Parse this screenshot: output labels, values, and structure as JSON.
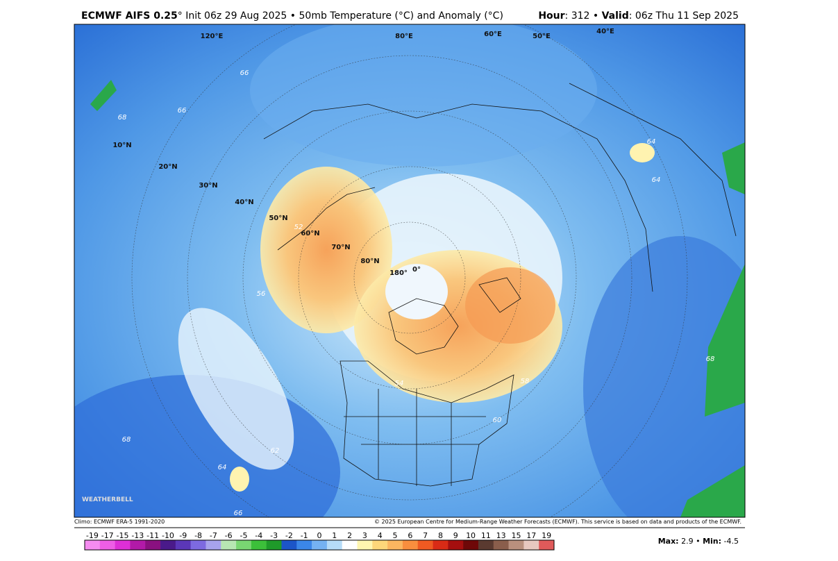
{
  "header": {
    "model": "ECMWF AIFS 0.25",
    "init": "° Init 06z 29 Aug 2025 • 50mb Temperature (°C) and Anomaly (°C)",
    "hour_label": "Hour",
    "hour_value": ": 312 • ",
    "valid_label": "Valid",
    "valid_value": ": 06z Thu 11 Sep 2025"
  },
  "map": {
    "lat_labels": [
      "10°N",
      "20°N",
      "30°N",
      "40°N",
      "50°N",
      "60°N",
      "70°N",
      "80°N"
    ],
    "lon_labels": [
      "180°",
      "0°",
      "80°E",
      "60°E",
      "50°E",
      "40°E",
      "120°E"
    ],
    "contour_labels": [
      "66",
      "68",
      "66",
      "64",
      "64",
      "62",
      "60",
      "58",
      "56",
      "54",
      "52",
      "68",
      "68",
      "64",
      "66"
    ],
    "logo": "WEATHERBELL"
  },
  "footer": {
    "climo": "Climo: ECMWF ERA-5 1991-2020",
    "copyright": "© 2025 European Centre for Medium-Range Weather Forecasts (ECMWF). This service is based on data and products of the ECMWF."
  },
  "colorbar": {
    "ticks": [
      -19,
      -17,
      -15,
      -13,
      -11,
      -10,
      -9,
      -8,
      -7,
      -6,
      -5,
      -4,
      -3,
      -2,
      -1,
      0,
      1,
      2,
      3,
      4,
      5,
      6,
      7,
      8,
      9,
      10,
      11,
      13,
      15,
      17,
      19
    ],
    "colors": [
      "#f58cf0",
      "#ee5ee6",
      "#dd2fd6",
      "#b21aa8",
      "#8a1180",
      "#4a1a8a",
      "#5b37b8",
      "#7d6ae0",
      "#a7a3ec",
      "#b7e6b3",
      "#79d672",
      "#3cbf3a",
      "#1f9a2a",
      "#1c55c8",
      "#3b86e8",
      "#75b2f2",
      "#b6dcf8",
      "#ffffff",
      "#fff6b0",
      "#fdd77a",
      "#fbb660",
      "#f98e3e",
      "#ef5a22",
      "#d92b16",
      "#a50f0f",
      "#6e0808",
      "#5a3a30",
      "#8a5e4c",
      "#b9907e",
      "#e8c8c0",
      "#e05a5a"
    ]
  },
  "stats": {
    "max_label": "Max:",
    "max": 2.9,
    "sep": "•",
    "min_label": "Min:",
    "min": -4.5
  }
}
